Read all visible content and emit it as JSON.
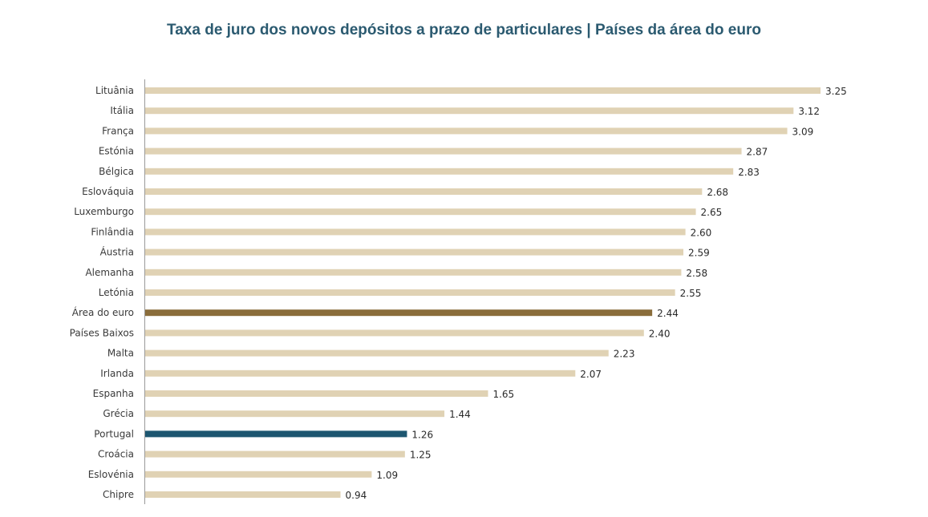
{
  "chart_data": {
    "type": "bar",
    "orientation": "horizontal",
    "title": "Taxa de juro dos novos depósitos a prazo de particulares | Países da área do euro",
    "categories": [
      "Lituânia",
      "Itália",
      "França",
      "Estónia",
      "Bélgica",
      "Eslováquia",
      "Luxemburgo",
      "Finlândia",
      "Áustria",
      "Alemanha",
      "Letónia",
      "Área do euro",
      "Países Baixos",
      "Malta",
      "Irlanda",
      "Espanha",
      "Grécia",
      "Portugal",
      "Croácia",
      "Eslovénia",
      "Chipre"
    ],
    "values": [
      3.25,
      3.12,
      3.09,
      2.87,
      2.83,
      2.68,
      2.65,
      2.6,
      2.59,
      2.58,
      2.55,
      2.44,
      2.4,
      2.23,
      2.07,
      1.65,
      1.44,
      1.26,
      1.25,
      1.09,
      0.94
    ],
    "value_labels": [
      "3.25",
      "3.12",
      "3.09",
      "2.87",
      "2.83",
      "2.68",
      "2.65",
      "2.60",
      "2.59",
      "2.58",
      "2.55",
      "2.44",
      "2.40",
      "2.23",
      "2.07",
      "1.65",
      "1.44",
      "1.26",
      "1.25",
      "1.09",
      "0.94"
    ],
    "xlim": [
      0,
      3.25
    ],
    "grid": false,
    "legend": "none",
    "colors": {
      "default": "#e0d2b4",
      "highlights": {
        "Área do euro": "#8a6d3b",
        "Portugal": "#1d5670"
      },
      "axis": "#9a9a9a",
      "title": "#2b5a70"
    }
  }
}
